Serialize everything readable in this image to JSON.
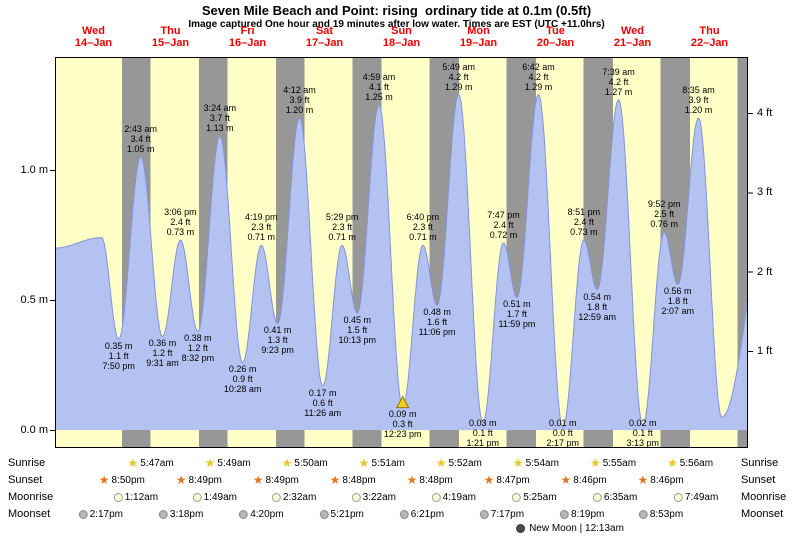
{
  "header": {
    "title": "Seven Mile Beach and Point: rising  ordinary tide at 0.1m (0.5ft)",
    "subtitle": "Image captured One hour and 19 minutes after low water. Times are EST (UTC +11.0hrs)"
  },
  "chart_data": {
    "type": "area",
    "series_name": "Tide height",
    "y_unit_left": "m",
    "y_unit_right": "ft",
    "ylim_m": [
      0,
      1.44
    ],
    "legend": "none",
    "grid": "off",
    "categories": [
      {
        "weekday": "Wed",
        "date": "14–Jan"
      },
      {
        "weekday": "Thu",
        "date": "15–Jan"
      },
      {
        "weekday": "Fri",
        "date": "16–Jan"
      },
      {
        "weekday": "Sat",
        "date": "17–Jan"
      },
      {
        "weekday": "Sun",
        "date": "18–Jan"
      },
      {
        "weekday": "Mon",
        "date": "19–Jan"
      },
      {
        "weekday": "Tue",
        "date": "20–Jan"
      },
      {
        "weekday": "Wed",
        "date": "21–Jan"
      },
      {
        "weekday": "Thu",
        "date": "22–Jan"
      }
    ],
    "y_axis_left_ticks": [
      {
        "label": "0.0 m",
        "m": 0.0
      },
      {
        "label": "0.5 m",
        "m": 0.5
      },
      {
        "label": "1.0 m",
        "m": 1.0
      }
    ],
    "y_axis_right_ticks": [
      {
        "label": "1 ft",
        "m": 0.3048
      },
      {
        "label": "2 ft",
        "m": 0.6096
      },
      {
        "label": "3 ft",
        "m": 0.9144
      },
      {
        "label": "4 ft",
        "m": 1.2192
      }
    ],
    "tide_events": [
      {
        "day": 0,
        "time": "7:50 pm",
        "m": "0.35",
        "ft": "1.1",
        "type": "low"
      },
      {
        "day": 1,
        "time": "2:43 am",
        "m": "1.05",
        "ft": "3.4",
        "type": "high"
      },
      {
        "day": 1,
        "time": "9:31 am",
        "m": "0.36",
        "ft": "1.2",
        "type": "low"
      },
      {
        "day": 1,
        "time": "3:06 pm",
        "m": "0.73",
        "ft": "2.4",
        "type": "high"
      },
      {
        "day": 1,
        "time": "8:32 pm",
        "m": "0.38",
        "ft": "1.2",
        "type": "low"
      },
      {
        "day": 2,
        "time": "3:24 am",
        "m": "1.13",
        "ft": "3.7",
        "type": "high"
      },
      {
        "day": 2,
        "time": "10:28 am",
        "m": "0.26",
        "ft": "0.9",
        "type": "low"
      },
      {
        "day": 2,
        "time": "4:19 pm",
        "m": "0.71",
        "ft": "2.3",
        "type": "high"
      },
      {
        "day": 2,
        "time": "9:23 pm",
        "m": "0.41",
        "ft": "1.3",
        "type": "low"
      },
      {
        "day": 3,
        "time": "4:12 am",
        "m": "1.20",
        "ft": "3.9",
        "type": "high"
      },
      {
        "day": 3,
        "time": "11:26 am",
        "m": "0.17",
        "ft": "0.6",
        "type": "low"
      },
      {
        "day": 3,
        "time": "5:29 pm",
        "m": "0.71",
        "ft": "2.3",
        "type": "high"
      },
      {
        "day": 3,
        "time": "10:13 pm",
        "m": "0.45",
        "ft": "1.5",
        "type": "low"
      },
      {
        "day": 4,
        "time": "4:59 am",
        "m": "1.25",
        "ft": "4.1",
        "type": "high"
      },
      {
        "day": 4,
        "time": "12:23 pm",
        "m": "0.09",
        "ft": "0.3",
        "type": "low",
        "current": true
      },
      {
        "day": 4,
        "time": "6:40 pm",
        "m": "0.71",
        "ft": "2.3",
        "type": "high"
      },
      {
        "day": 4,
        "time": "11:06 pm",
        "m": "0.48",
        "ft": "1.6",
        "type": "low"
      },
      {
        "day": 5,
        "time": "5:49 am",
        "m": "1.29",
        "ft": "4.2",
        "type": "high"
      },
      {
        "day": 5,
        "time": "1:21 pm",
        "m": "0.03",
        "ft": "0.1",
        "type": "low"
      },
      {
        "day": 5,
        "time": "7:47 pm",
        "m": "0.72",
        "ft": "2.4",
        "type": "high"
      },
      {
        "day": 5,
        "time": "11:59 pm",
        "m": "0.51",
        "ft": "1.7",
        "type": "low"
      },
      {
        "day": 6,
        "time": "6:42 am",
        "m": "1.29",
        "ft": "4.2",
        "type": "high"
      },
      {
        "day": 6,
        "time": "2:17 pm",
        "m": "0.01",
        "ft": "0.0",
        "type": "low"
      },
      {
        "day": 6,
        "time": "8:51 pm",
        "m": "0.73",
        "ft": "2.4",
        "type": "high"
      },
      {
        "day": 7,
        "time": "12:59 am",
        "m": "0.54",
        "ft": "1.8",
        "type": "low"
      },
      {
        "day": 7,
        "time": "7:39 am",
        "m": "1.27",
        "ft": "4.2",
        "type": "high"
      },
      {
        "day": 7,
        "time": "3:13 pm",
        "m": "0.02",
        "ft": "0.1",
        "type": "low"
      },
      {
        "day": 7,
        "time": "9:52 pm",
        "m": "0.76",
        "ft": "2.5",
        "type": "high"
      },
      {
        "day": 8,
        "time": "2:07 am",
        "m": "0.56",
        "ft": "1.8",
        "type": "low"
      },
      {
        "day": 8,
        "time": "8:35 am",
        "m": "1.20",
        "ft": "3.9",
        "type": "high"
      }
    ],
    "curve_anchors": [
      {
        "day": 0,
        "time": "12:00 am",
        "m": "0.70"
      },
      {
        "day": 0,
        "time": "2:30 pm",
        "m": "0.74"
      },
      {
        "day": 8,
        "time": "3:50 pm",
        "m": "0.05"
      },
      {
        "day": 9,
        "time": "8:00 am",
        "m": "0.95"
      }
    ]
  },
  "astro": {
    "rows": [
      {
        "label": "Sunrise",
        "icon": "sunrise-star",
        "entries": [
          {
            "day": 1,
            "time": "5:47am"
          },
          {
            "day": 2,
            "time": "5:49am"
          },
          {
            "day": 3,
            "time": "5:50am"
          },
          {
            "day": 4,
            "time": "5:51am"
          },
          {
            "day": 5,
            "time": "5:52am"
          },
          {
            "day": 6,
            "time": "5:54am"
          },
          {
            "day": 7,
            "time": "5:55am"
          },
          {
            "day": 8,
            "time": "5:56am"
          }
        ]
      },
      {
        "label": "Sunset",
        "icon": "sunset-star",
        "entries": [
          {
            "day": 0,
            "time": "8:50pm"
          },
          {
            "day": 1,
            "time": "8:49pm"
          },
          {
            "day": 2,
            "time": "8:49pm"
          },
          {
            "day": 3,
            "time": "8:48pm"
          },
          {
            "day": 4,
            "time": "8:48pm"
          },
          {
            "day": 5,
            "time": "8:47pm"
          },
          {
            "day": 6,
            "time": "8:46pm"
          },
          {
            "day": 7,
            "time": "8:46pm"
          }
        ]
      },
      {
        "label": "Moonrise",
        "icon": "moon-light",
        "entries": [
          {
            "day": 1,
            "time": "1:12am"
          },
          {
            "day": 2,
            "time": "1:49am"
          },
          {
            "day": 3,
            "time": "2:32am"
          },
          {
            "day": 4,
            "time": "3:22am"
          },
          {
            "day": 5,
            "time": "4:19am"
          },
          {
            "day": 6,
            "time": "5:25am"
          },
          {
            "day": 7,
            "time": "6:35am"
          },
          {
            "day": 8,
            "time": "7:49am"
          }
        ]
      },
      {
        "label": "Moonset",
        "icon": "moon-dark",
        "entries": [
          {
            "day": 0,
            "time": "2:17pm"
          },
          {
            "day": 1,
            "time": "3:18pm"
          },
          {
            "day": 2,
            "time": "4:20pm"
          },
          {
            "day": 3,
            "time": "5:21pm"
          },
          {
            "day": 4,
            "time": "6:21pm"
          },
          {
            "day": 5,
            "time": "7:17pm"
          },
          {
            "day": 6,
            "time": "8:19pm"
          },
          {
            "day": 7,
            "time": "8:53pm"
          }
        ]
      }
    ],
    "footer": "New Moon | 12:13am"
  },
  "colors": {
    "plot_day_bg": "#ffffc8",
    "night_band": "#979797",
    "tide_fill": "#b3c2f0",
    "tide_stroke": "#8394dc",
    "date_red": "#ee0000",
    "marker_fill": "#f2cf1f",
    "marker_stroke": "#8a7a10",
    "sunrise_star": "#e8c62a",
    "sunset_star": "#e5761e",
    "moon_light_fill": "#ffffd6",
    "moon_light_border": "#9a9a9a",
    "moon_dark_fill": "#b6b6b6",
    "moon_dark_border": "#8c8c8c",
    "new_moon_fill": "#4a4a4a"
  }
}
